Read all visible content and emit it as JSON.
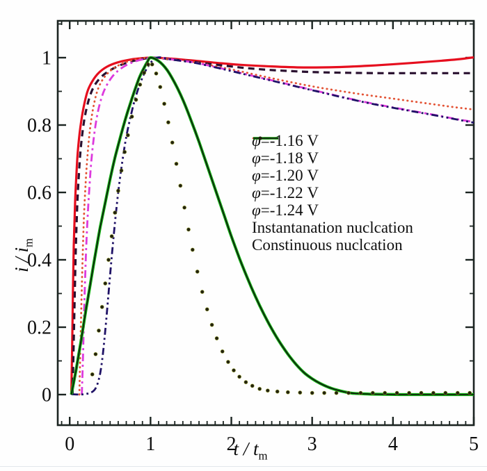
{
  "figure": {
    "background": "#fefefe",
    "frame_color": "#1b2421",
    "tick_text_color": "#0c0c0c"
  },
  "chart_data": {
    "type": "line",
    "title": "",
    "xlabel": "t / tm",
    "ylabel": "i / im",
    "xlabel_main": "t / t",
    "xlabel_sub": "m",
    "ylabel_main": "i / i",
    "ylabel_sub": "m",
    "xlim": [
      -0.15,
      5.0
    ],
    "ylim": [
      -0.09,
      1.11
    ],
    "x_ticks": [
      0,
      1,
      2,
      3,
      4,
      5
    ],
    "x_tick_labels": [
      "0",
      "1",
      "2",
      "3",
      "4",
      "5"
    ],
    "y_ticks": [
      0,
      0.2,
      0.4,
      0.6,
      0.8,
      1.0
    ],
    "y_tick_labels": [
      "0",
      "0.2",
      "0.4",
      "0.6",
      "0.8",
      "1"
    ],
    "x_minor_step": 0.1,
    "y_minor_step": 0.1,
    "grid": "off",
    "legend_position": "center-right",
    "series": [
      {
        "name": "phi-1.16V",
        "label": "φ=-1.16 V",
        "color": "#e60e1e",
        "style": "solid",
        "width": 3.2,
        "points": [
          [
            0.02,
            0
          ],
          [
            0.03,
            0.14
          ],
          [
            0.04,
            0.3
          ],
          [
            0.05,
            0.44
          ],
          [
            0.065,
            0.56
          ],
          [
            0.08,
            0.64
          ],
          [
            0.1,
            0.72
          ],
          [
            0.13,
            0.79
          ],
          [
            0.17,
            0.85
          ],
          [
            0.22,
            0.9
          ],
          [
            0.28,
            0.93
          ],
          [
            0.36,
            0.955
          ],
          [
            0.46,
            0.973
          ],
          [
            0.58,
            0.985
          ],
          [
            0.72,
            0.993
          ],
          [
            0.87,
            0.998
          ],
          [
            1.02,
            1
          ],
          [
            1.2,
            0.998
          ],
          [
            1.5,
            0.992
          ],
          [
            1.8,
            0.985
          ],
          [
            2.1,
            0.979
          ],
          [
            2.5,
            0.974
          ],
          [
            2.9,
            0.971
          ],
          [
            3.3,
            0.972
          ],
          [
            3.7,
            0.976
          ],
          [
            4.1,
            0.982
          ],
          [
            4.5,
            0.989
          ],
          [
            4.8,
            0.995
          ],
          [
            5,
            1.001
          ]
        ]
      },
      {
        "name": "phi-1.18V",
        "label": "φ=-1.18 V",
        "color": "#2a1130",
        "style": "dashed",
        "width": 3.2,
        "points": [
          [
            0.035,
            0
          ],
          [
            0.05,
            0.16
          ],
          [
            0.065,
            0.33
          ],
          [
            0.08,
            0.47
          ],
          [
            0.095,
            0.57
          ],
          [
            0.115,
            0.66
          ],
          [
            0.14,
            0.74
          ],
          [
            0.18,
            0.815
          ],
          [
            0.23,
            0.87
          ],
          [
            0.29,
            0.91
          ],
          [
            0.37,
            0.938
          ],
          [
            0.47,
            0.958
          ],
          [
            0.6,
            0.975
          ],
          [
            0.75,
            0.988
          ],
          [
            0.9,
            0.996
          ],
          [
            1.05,
            1
          ],
          [
            1.25,
            0.995
          ],
          [
            1.55,
            0.987
          ],
          [
            1.85,
            0.978
          ],
          [
            2.15,
            0.97
          ],
          [
            2.45,
            0.964
          ],
          [
            2.75,
            0.96
          ],
          [
            3.05,
            0.957
          ],
          [
            3.45,
            0.955
          ],
          [
            3.85,
            0.954
          ],
          [
            4.25,
            0.954
          ],
          [
            4.65,
            0.954
          ],
          [
            5,
            0.954
          ]
        ]
      },
      {
        "name": "phi-1.20V",
        "label": "φ=-1.20 V",
        "color": "#e35335",
        "style": "dotted",
        "width": 2.8,
        "points": [
          [
            0.12,
            0
          ],
          [
            0.13,
            0.12
          ],
          [
            0.145,
            0.27
          ],
          [
            0.16,
            0.41
          ],
          [
            0.175,
            0.52
          ],
          [
            0.195,
            0.62
          ],
          [
            0.22,
            0.71
          ],
          [
            0.25,
            0.785
          ],
          [
            0.29,
            0.85
          ],
          [
            0.34,
            0.9
          ],
          [
            0.4,
            0.932
          ],
          [
            0.48,
            0.956
          ],
          [
            0.58,
            0.974
          ],
          [
            0.71,
            0.988
          ],
          [
            0.86,
            0.997
          ],
          [
            1.02,
            1
          ],
          [
            1.22,
            0.996
          ],
          [
            1.52,
            0.987
          ],
          [
            1.82,
            0.974
          ],
          [
            2.12,
            0.959
          ],
          [
            2.42,
            0.943
          ],
          [
            2.72,
            0.928
          ],
          [
            3.02,
            0.914
          ],
          [
            3.32,
            0.902
          ],
          [
            3.62,
            0.891
          ],
          [
            3.92,
            0.881
          ],
          [
            4.22,
            0.871
          ],
          [
            4.52,
            0.861
          ],
          [
            4.76,
            0.853
          ],
          [
            5,
            0.846
          ]
        ]
      },
      {
        "name": "phi-1.22V",
        "label": "φ=-1.22 V",
        "color": "#dd3add",
        "style": "dashdot",
        "width": 2.8,
        "points": [
          [
            0.15,
            0
          ],
          [
            0.165,
            0.12
          ],
          [
            0.18,
            0.26
          ],
          [
            0.2,
            0.41
          ],
          [
            0.22,
            0.52
          ],
          [
            0.245,
            0.62
          ],
          [
            0.27,
            0.7
          ],
          [
            0.305,
            0.775
          ],
          [
            0.345,
            0.835
          ],
          [
            0.395,
            0.882
          ],
          [
            0.455,
            0.917
          ],
          [
            0.535,
            0.946
          ],
          [
            0.635,
            0.968
          ],
          [
            0.755,
            0.984
          ],
          [
            0.905,
            0.995
          ],
          [
            1.06,
            1
          ],
          [
            1.26,
            0.995
          ],
          [
            1.56,
            0.985
          ],
          [
            1.86,
            0.969
          ],
          [
            2.16,
            0.952
          ],
          [
            2.46,
            0.935
          ],
          [
            2.76,
            0.918
          ],
          [
            3.06,
            0.901
          ],
          [
            3.36,
            0.884
          ],
          [
            3.66,
            0.868
          ],
          [
            3.96,
            0.854
          ],
          [
            4.26,
            0.841
          ],
          [
            4.56,
            0.828
          ],
          [
            4.78,
            0.818
          ],
          [
            5,
            0.809
          ]
        ]
      },
      {
        "name": "phi-1.24V",
        "label": "φ=-1.24 V",
        "color": "#1f1266",
        "style": "dashdotdot",
        "width": 2.8,
        "points": [
          [
            0.02,
            0.001
          ],
          [
            0.18,
            0.001
          ],
          [
            0.3,
            0.012
          ],
          [
            0.36,
            0.045
          ],
          [
            0.4,
            0.1
          ],
          [
            0.44,
            0.19
          ],
          [
            0.48,
            0.3
          ],
          [
            0.52,
            0.41
          ],
          [
            0.56,
            0.51
          ],
          [
            0.6,
            0.6
          ],
          [
            0.65,
            0.69
          ],
          [
            0.7,
            0.765
          ],
          [
            0.76,
            0.832
          ],
          [
            0.82,
            0.887
          ],
          [
            0.89,
            0.935
          ],
          [
            0.97,
            0.974
          ],
          [
            1.08,
            1
          ],
          [
            1.27,
            0.994
          ],
          [
            1.56,
            0.984
          ],
          [
            1.86,
            0.968
          ],
          [
            2.16,
            0.951
          ],
          [
            2.46,
            0.934
          ],
          [
            2.76,
            0.917
          ],
          [
            3.06,
            0.9
          ],
          [
            3.36,
            0.883
          ],
          [
            3.66,
            0.867
          ],
          [
            3.96,
            0.853
          ],
          [
            4.26,
            0.84
          ],
          [
            4.56,
            0.827
          ],
          [
            4.78,
            0.817
          ],
          [
            5,
            0.807
          ]
        ]
      },
      {
        "name": "instantaneous-nucleation",
        "label": "Instantanation nuclcation",
        "color": "#12b012",
        "core_color": "#111111",
        "style": "double",
        "width": 4.2,
        "points": [
          [
            0.02,
            0
          ],
          [
            0.08,
            0.075
          ],
          [
            0.14,
            0.16
          ],
          [
            0.2,
            0.25
          ],
          [
            0.26,
            0.335
          ],
          [
            0.32,
            0.42
          ],
          [
            0.38,
            0.5
          ],
          [
            0.44,
            0.57
          ],
          [
            0.5,
            0.64
          ],
          [
            0.56,
            0.703
          ],
          [
            0.62,
            0.758
          ],
          [
            0.68,
            0.81
          ],
          [
            0.74,
            0.857
          ],
          [
            0.8,
            0.9
          ],
          [
            0.86,
            0.94
          ],
          [
            0.92,
            0.97
          ],
          [
            0.96,
            0.987
          ],
          [
            1,
            1
          ],
          [
            1.1,
            0.99
          ],
          [
            1.2,
            0.965
          ],
          [
            1.3,
            0.925
          ],
          [
            1.4,
            0.875
          ],
          [
            1.5,
            0.815
          ],
          [
            1.6,
            0.75
          ],
          [
            1.7,
            0.68
          ],
          [
            1.8,
            0.61
          ],
          [
            1.9,
            0.54
          ],
          [
            2,
            0.47
          ],
          [
            2.1,
            0.405
          ],
          [
            2.2,
            0.345
          ],
          [
            2.3,
            0.29
          ],
          [
            2.4,
            0.24
          ],
          [
            2.5,
            0.195
          ],
          [
            2.6,
            0.155
          ],
          [
            2.7,
            0.12
          ],
          [
            2.8,
            0.09
          ],
          [
            2.9,
            0.065
          ],
          [
            3,
            0.047
          ],
          [
            3.1,
            0.033
          ],
          [
            3.2,
            0.022
          ],
          [
            3.3,
            0.014
          ],
          [
            3.4,
            0.008
          ],
          [
            3.5,
            0.004
          ],
          [
            3.65,
            0.002
          ],
          [
            3.8,
            0.001
          ],
          [
            4.1,
            0
          ],
          [
            4.5,
            0
          ],
          [
            5,
            0
          ]
        ]
      },
      {
        "name": "continuous-nucleation",
        "label": "Constinuous nuclcation",
        "color": "#22220f",
        "halo_color": "#a4b021",
        "style": "scatter",
        "dot_radius": 2.6,
        "points": [
          [
            0.28,
            0.06
          ],
          [
            0.32,
            0.12
          ],
          [
            0.36,
            0.19
          ],
          [
            0.4,
            0.26
          ],
          [
            0.44,
            0.33
          ],
          [
            0.48,
            0.4
          ],
          [
            0.52,
            0.47
          ],
          [
            0.56,
            0.54
          ],
          [
            0.6,
            0.605
          ],
          [
            0.64,
            0.665
          ],
          [
            0.68,
            0.72
          ],
          [
            0.72,
            0.77
          ],
          [
            0.77,
            0.825
          ],
          [
            0.82,
            0.875
          ],
          [
            0.87,
            0.92
          ],
          [
            0.92,
            0.955
          ],
          [
            0.97,
            0.98
          ],
          [
            1.02,
            0.98
          ],
          [
            1.07,
            0.953
          ],
          [
            1.12,
            0.913
          ],
          [
            1.17,
            0.863
          ],
          [
            1.22,
            0.808
          ],
          [
            1.27,
            0.748
          ],
          [
            1.32,
            0.685
          ],
          [
            1.37,
            0.62
          ],
          [
            1.42,
            0.555
          ],
          [
            1.47,
            0.49
          ],
          [
            1.52,
            0.43
          ],
          [
            1.58,
            0.365
          ],
          [
            1.64,
            0.305
          ],
          [
            1.7,
            0.253
          ],
          [
            1.76,
            0.207
          ],
          [
            1.82,
            0.167
          ],
          [
            1.89,
            0.128
          ],
          [
            1.96,
            0.097
          ],
          [
            2.03,
            0.072
          ],
          [
            2.1,
            0.053
          ],
          [
            2.18,
            0.037
          ],
          [
            2.26,
            0.026
          ],
          [
            2.35,
            0.017
          ],
          [
            2.45,
            0.012
          ],
          [
            2.57,
            0.009
          ],
          [
            2.7,
            0.007
          ],
          [
            2.85,
            0.006
          ],
          [
            3,
            0.005
          ],
          [
            3.15,
            0.005
          ],
          [
            3.3,
            0.005
          ],
          [
            3.45,
            0.005
          ],
          [
            3.6,
            0.005
          ],
          [
            3.75,
            0.005
          ],
          [
            3.9,
            0.005
          ],
          [
            4.05,
            0.005
          ],
          [
            4.2,
            0.005
          ],
          [
            4.35,
            0.005
          ],
          [
            4.5,
            0.005
          ],
          [
            4.65,
            0.005
          ],
          [
            4.8,
            0.005
          ],
          [
            4.95,
            0.005
          ]
        ]
      }
    ]
  }
}
